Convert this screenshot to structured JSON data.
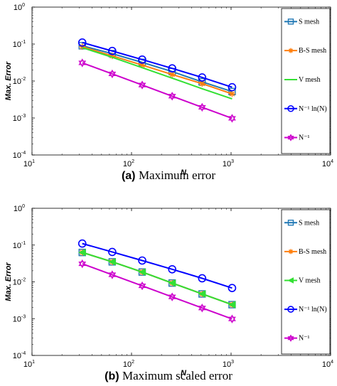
{
  "chart_data": [
    {
      "type": "line",
      "caption_tag": "(a)",
      "caption_text": "Maximum error",
      "xlabel": "N",
      "ylabel": "Max. Error",
      "xscale": "log",
      "yscale": "log",
      "xlim": [
        10,
        10000
      ],
      "ylim": [
        0.0001,
        1
      ],
      "x_ticks": [
        "10",
        "10",
        "10",
        "10"
      ],
      "x_tick_exps": [
        "1",
        "2",
        "3",
        "4"
      ],
      "y_ticks": [
        "10",
        "10",
        "10",
        "10",
        "10"
      ],
      "y_tick_exps": [
        "0",
        "-1",
        "-2",
        "-3",
        "-4"
      ],
      "grid": false,
      "legend_position": "right",
      "series": [
        {
          "name": "S mesh",
          "color": "#1f77b4",
          "marker": "square",
          "x": [
            32,
            64,
            128,
            256,
            512,
            1024
          ],
          "y": [
            0.09,
            0.055,
            0.032,
            0.018,
            0.0095,
            0.0052
          ]
        },
        {
          "name": "B-S mesh",
          "color": "#ff7f0e",
          "marker": "star",
          "x": [
            32,
            64,
            128,
            256,
            512,
            1024
          ],
          "y": [
            0.085,
            0.048,
            0.027,
            0.015,
            0.0085,
            0.0045
          ]
        },
        {
          "name": "V mesh",
          "color": "#33e033",
          "marker": "none",
          "x": [
            32,
            64,
            128,
            256,
            512,
            1024
          ],
          "y": [
            0.08,
            0.044,
            0.023,
            0.012,
            0.0062,
            0.0033
          ]
        },
        {
          "name": "N⁻¹ ln(N)",
          "color": "#0000ff",
          "marker": "circle",
          "x": [
            32,
            64,
            128,
            256,
            512,
            1024
          ],
          "y": [
            0.11,
            0.065,
            0.038,
            0.022,
            0.0125,
            0.0068
          ]
        },
        {
          "name": "N⁻¹",
          "color": "#cc00cc",
          "marker": "hexagram",
          "x": [
            32,
            64,
            128,
            256,
            512,
            1024
          ],
          "y": [
            0.031,
            0.0156,
            0.0078,
            0.0039,
            0.00195,
            0.00098
          ]
        }
      ]
    },
    {
      "type": "line",
      "caption_tag": "(b)",
      "caption_text": "Maximum scaled error",
      "xlabel": "N",
      "ylabel": "Max. Error",
      "xscale": "log",
      "yscale": "log",
      "xlim": [
        10,
        10000
      ],
      "ylim": [
        0.0001,
        1
      ],
      "x_ticks": [
        "10",
        "10",
        "10",
        "10"
      ],
      "x_tick_exps": [
        "1",
        "2",
        "3",
        "4"
      ],
      "y_ticks": [
        "10",
        "10",
        "10",
        "10",
        "10"
      ],
      "y_tick_exps": [
        "0",
        "-1",
        "-2",
        "-3",
        "-4"
      ],
      "grid": false,
      "legend_position": "right",
      "series": [
        {
          "name": "S mesh",
          "color": "#1f77b4",
          "marker": "square",
          "x": [
            32,
            64,
            128,
            256,
            512,
            1024
          ],
          "y": [
            0.063,
            0.035,
            0.0185,
            0.0093,
            0.0047,
            0.0024
          ]
        },
        {
          "name": "B-S mesh",
          "color": "#ff7f0e",
          "marker": "star",
          "x": [
            32,
            64,
            128,
            256,
            512,
            1024
          ],
          "y": [
            0.063,
            0.035,
            0.0185,
            0.0093,
            0.0047,
            0.0024
          ]
        },
        {
          "name": "V mesh",
          "color": "#33e033",
          "marker": "triangle-left",
          "x": [
            32,
            64,
            128,
            256,
            512,
            1024
          ],
          "y": [
            0.063,
            0.035,
            0.0185,
            0.0093,
            0.0047,
            0.0024
          ]
        },
        {
          "name": "N⁻¹ ln(N)",
          "color": "#0000ff",
          "marker": "circle",
          "x": [
            32,
            64,
            128,
            256,
            512,
            1024
          ],
          "y": [
            0.11,
            0.065,
            0.038,
            0.022,
            0.0125,
            0.0068
          ]
        },
        {
          "name": "N⁻¹",
          "color": "#cc00cc",
          "marker": "hexagram",
          "x": [
            32,
            64,
            128,
            256,
            512,
            1024
          ],
          "y": [
            0.031,
            0.0156,
            0.0078,
            0.0039,
            0.00195,
            0.00098
          ]
        }
      ]
    }
  ]
}
